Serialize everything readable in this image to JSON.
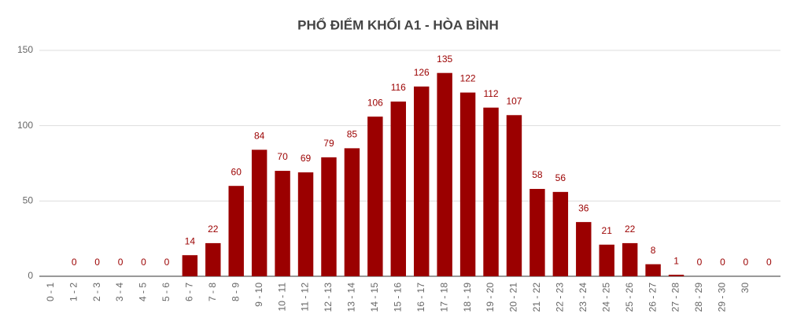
{
  "chart_data": {
    "type": "bar",
    "title": "PHỔ ĐIỂM KHỐI A1 - HÒA BÌNH",
    "categories": [
      "0 - 1",
      "1 - 2",
      "2 - 3",
      "3 - 4",
      "4 - 5",
      "5 - 6",
      "6 - 7",
      "7 - 8",
      "8 - 9",
      "9 - 10",
      "10 - 11",
      "11 - 12",
      "12 - 13",
      "13 - 14",
      "14 - 15",
      "15 - 16",
      "16 - 17",
      "17 - 18",
      "18 - 19",
      "19 - 20",
      "20 - 21",
      "21 - 22",
      "22 - 23",
      "23 - 24",
      "24 - 25",
      "25 - 26",
      "26 - 27",
      "27 - 28",
      "28 - 29",
      "29 - 30",
      "30",
      null
    ],
    "values": [
      null,
      0,
      0,
      0,
      0,
      0,
      14,
      22,
      60,
      84,
      70,
      69,
      79,
      85,
      106,
      116,
      126,
      135,
      122,
      112,
      107,
      58,
      56,
      36,
      21,
      22,
      8,
      1,
      0,
      0,
      0,
      0
    ],
    "color": "#9b0000",
    "ylim": [
      0,
      150
    ],
    "yticks": [
      0,
      50,
      100,
      150
    ],
    "grid": true
  }
}
